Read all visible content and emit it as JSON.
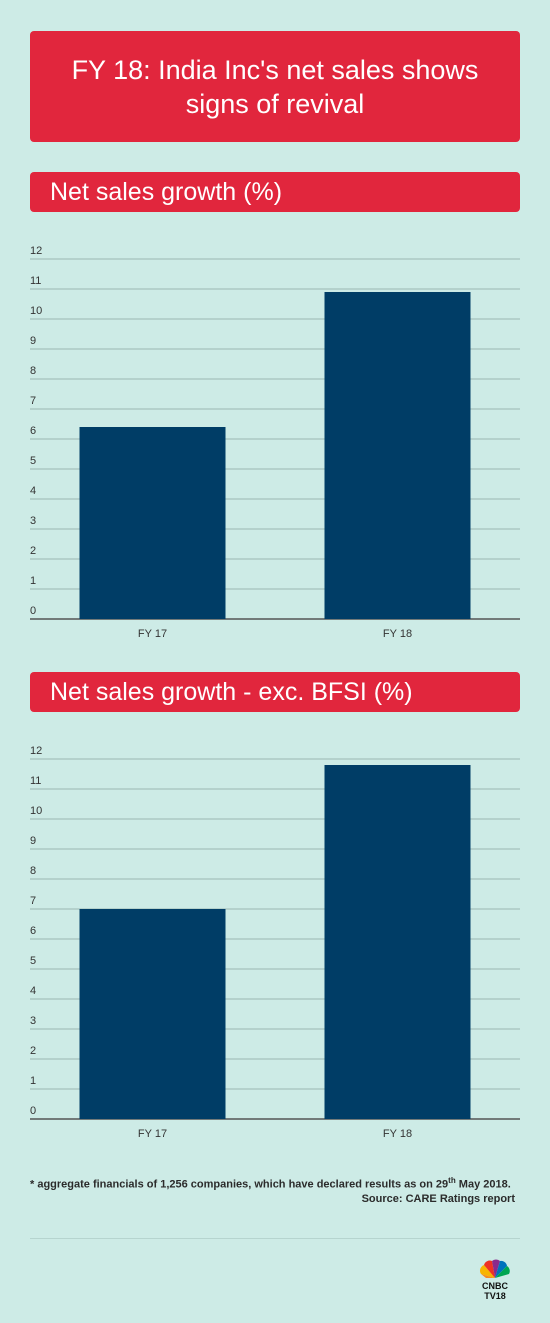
{
  "header": {
    "title": "FY 18: India Inc's net sales shows signs of revival"
  },
  "colors": {
    "background": "#cdebe6",
    "accent_red": "#e1263d",
    "bar_blue": "#003d66"
  },
  "chart_data": [
    {
      "type": "bar",
      "title": "Net sales growth (%)",
      "categories": [
        "FY 17",
        "FY 18"
      ],
      "values": [
        6.4,
        10.9
      ],
      "ylim": [
        0,
        12
      ],
      "yticks": [
        "0",
        "1",
        "2",
        "3",
        "4",
        "5",
        "6",
        "7",
        "8",
        "9",
        "10",
        "11",
        "12"
      ],
      "grid": true
    },
    {
      "type": "bar",
      "title": "Net sales growth - exc. BFSI (%)",
      "categories": [
        "FY 17",
        "FY 18"
      ],
      "values": [
        7.0,
        11.8
      ],
      "ylim": [
        0,
        12
      ],
      "yticks": [
        "0",
        "1",
        "2",
        "3",
        "4",
        "5",
        "6",
        "7",
        "8",
        "9",
        "10",
        "11",
        "12"
      ],
      "grid": true
    }
  ],
  "footer": {
    "footnote_prefix": "* aggregate financials of  1,256 companies, which have declared results as on 29",
    "footnote_sup": "th",
    "footnote_suffix": " May 2018.",
    "source": "Source: CARE Ratings report",
    "logo_line1": "CNBC",
    "logo_line2": "TV18",
    "logo_icon": "peacock-icon"
  }
}
